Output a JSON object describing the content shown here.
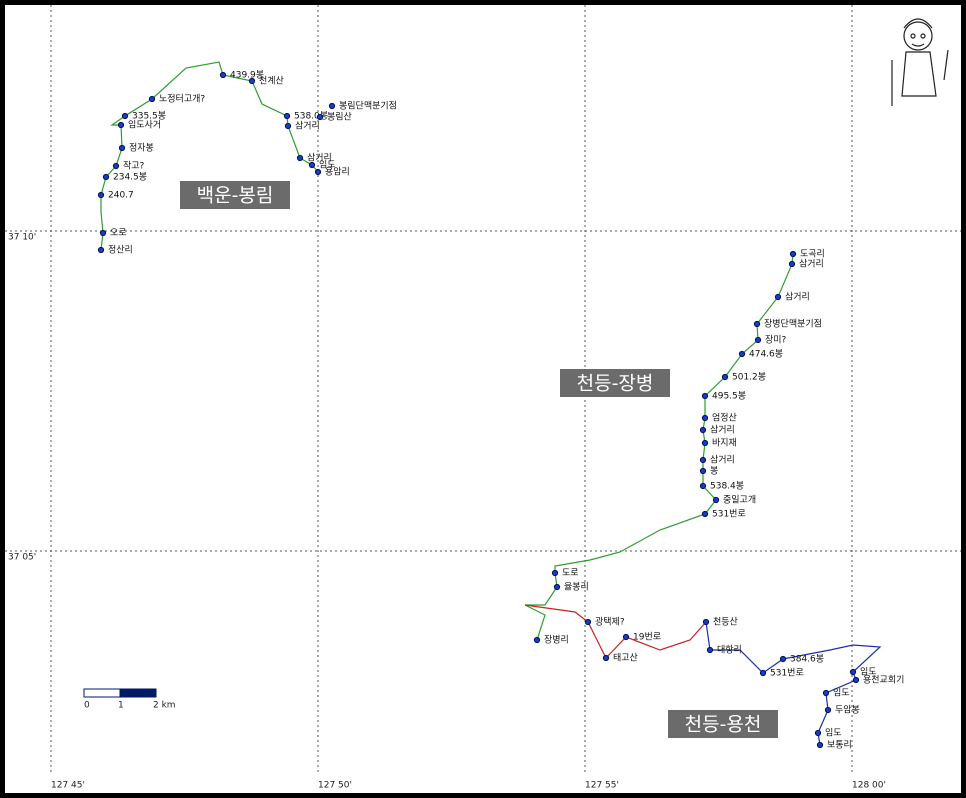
{
  "grid": {
    "lat_labels": [
      "37 10'",
      "37 05'"
    ],
    "lon_labels": [
      "127 45'",
      "127 50'",
      "127 55'",
      "128 00'"
    ]
  },
  "scale": {
    "labels": [
      "0",
      "1",
      "2 km"
    ]
  },
  "routes": [
    {
      "name": "백운-봉림",
      "waypoints": [
        "정산리",
        "오로",
        "240.7",
        "234.5봉",
        "작고?",
        "정자봉",
        "임도사거",
        "335.5봉",
        "노정터고개?",
        "439.9봉",
        "천계산",
        "봉림단맥분기점",
        "538.0봉",
        "봉림산",
        "삼거리",
        "삼거리",
        "임도",
        "용암리"
      ]
    },
    {
      "name": "천등-장병",
      "waypoints": [
        "도곡리",
        "삼거리",
        "삼거리",
        "장병단맥분기점",
        "장미?",
        "474.6봉",
        "501.2봉",
        "495.5봉",
        "엄정산",
        "삼거리",
        "바지재",
        "삼거리",
        "봉",
        "538.4봉",
        "중일고개",
        "531번로",
        "도로",
        "율봉리",
        "장병리"
      ]
    },
    {
      "name": "천등-용천",
      "waypoints": [
        "광택제?",
        "태고산",
        "19번로",
        "천등산",
        "대항리",
        "531번로",
        "384.6봉",
        "임도",
        "용천교회기",
        "임도",
        "두암봉",
        "임도",
        "보통리"
      ]
    }
  ]
}
